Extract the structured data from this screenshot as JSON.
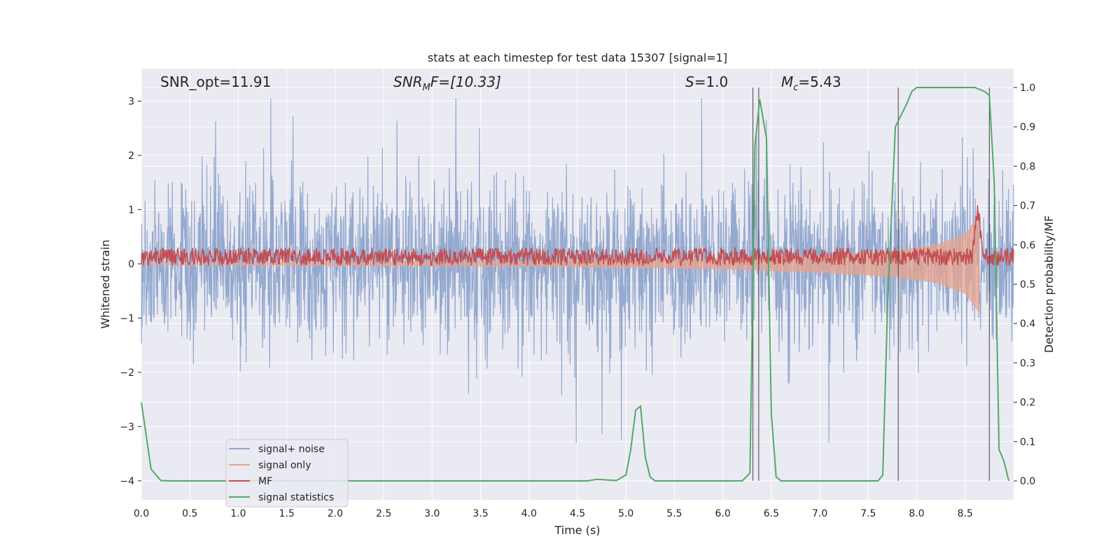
{
  "chart_data": {
    "type": "line",
    "title": "stats at each timestep for test data 15307 [signal=1]",
    "xlabel": "Time (s)",
    "ylabel_left": "Whitened strain",
    "ylabel_right": "Detection probability/MF",
    "xlim": [
      0,
      9.0
    ],
    "ylim_left": [
      -4.35,
      3.6
    ],
    "ylim_right": [
      -0.048,
      1.048
    ],
    "x_ticks": [
      0.0,
      0.5,
      1.0,
      1.5,
      2.0,
      2.5,
      3.0,
      3.5,
      4.0,
      4.5,
      5.0,
      5.5,
      6.0,
      6.5,
      7.0,
      7.5,
      8.0,
      8.5
    ],
    "x_tick_labels": [
      "0.0",
      "0.5",
      "1.0",
      "1.5",
      "2.0",
      "2.5",
      "3.0",
      "3.5",
      "4.0",
      "4.5",
      "5.0",
      "5.5",
      "6.0",
      "6.5",
      "7.0",
      "7.5",
      "8.0",
      "8.5"
    ],
    "y_left_ticks": [
      -4,
      -3,
      -2,
      -1,
      0,
      1,
      2,
      3
    ],
    "y_left_tick_labels": [
      "−4",
      "−3",
      "−2",
      "−1",
      "0",
      "1",
      "2",
      "3"
    ],
    "y_right_ticks": [
      0.0,
      0.1,
      0.2,
      0.3,
      0.4,
      0.5,
      0.6,
      0.7,
      0.8,
      0.9,
      1.0
    ],
    "y_right_tick_labels": [
      "0.0",
      "0.1",
      "0.2",
      "0.3",
      "0.4",
      "0.5",
      "0.6",
      "0.7",
      "0.8",
      "0.9",
      "1.0"
    ],
    "grid": true,
    "legend_position": "lower-left",
    "annotations": [
      {
        "id": "snr-opt",
        "text": "SNR_opt=11.91"
      },
      {
        "id": "snr-mf",
        "main": "SNR",
        "sub": "M",
        "rest": "F=[10.33]"
      },
      {
        "id": "s-val",
        "main": "S",
        "rest": "=1.0"
      },
      {
        "id": "mc-val",
        "main": "M",
        "sub": "c",
        "rest": "=5.43"
      }
    ],
    "vertical_lines_x": [
      6.31,
      6.37,
      7.81,
      8.75
    ],
    "series": [
      {
        "name": "signal+ noise",
        "color": "#8fa5cc",
        "axis": "left",
        "kind": "noise",
        "description_amplitude": "approx ±1.2 typical, peaks to ±3"
      },
      {
        "name": "signal only",
        "color": "#e8a48c",
        "axis": "left",
        "kind": "chirp",
        "envelope_points": {
          "x": [
            0.0,
            4.0,
            6.0,
            7.0,
            7.8,
            8.2,
            8.5,
            8.62,
            8.65
          ],
          "y": [
            0.02,
            0.05,
            0.1,
            0.16,
            0.25,
            0.35,
            0.55,
            0.85,
            0.9
          ]
        }
      },
      {
        "name": "MF",
        "color": "#c44e52",
        "axis": "right",
        "kind": "mf",
        "baseline": 0.57,
        "peak": {
          "x": 8.63,
          "y": 0.69
        }
      },
      {
        "name": "signal statistics",
        "color": "#55a868",
        "axis": "right",
        "kind": "line",
        "x": [
          0.0,
          0.1,
          0.2,
          0.3,
          4.5,
          4.6,
          4.7,
          4.9,
          5.0,
          5.05,
          5.1,
          5.15,
          5.2,
          5.25,
          5.3,
          6.2,
          6.28,
          6.33,
          6.38,
          6.45,
          6.5,
          6.55,
          6.6,
          6.7,
          7.6,
          7.65,
          7.7,
          7.78,
          7.82,
          7.9,
          7.95,
          8.0,
          8.1,
          8.6,
          8.7,
          8.75,
          8.8,
          8.85,
          8.9,
          8.95
        ],
        "y": [
          0.2,
          0.03,
          0.001,
          0.0,
          0.0,
          0.0,
          0.004,
          0.001,
          0.015,
          0.08,
          0.18,
          0.19,
          0.06,
          0.01,
          0.0,
          0.0,
          0.02,
          0.85,
          0.97,
          0.87,
          0.17,
          0.01,
          0.0,
          0.0,
          0.0,
          0.015,
          0.45,
          0.9,
          0.92,
          0.96,
          0.99,
          1.0,
          1.0,
          1.0,
          0.99,
          0.98,
          0.76,
          0.08,
          0.05,
          0.0
        ]
      }
    ]
  }
}
